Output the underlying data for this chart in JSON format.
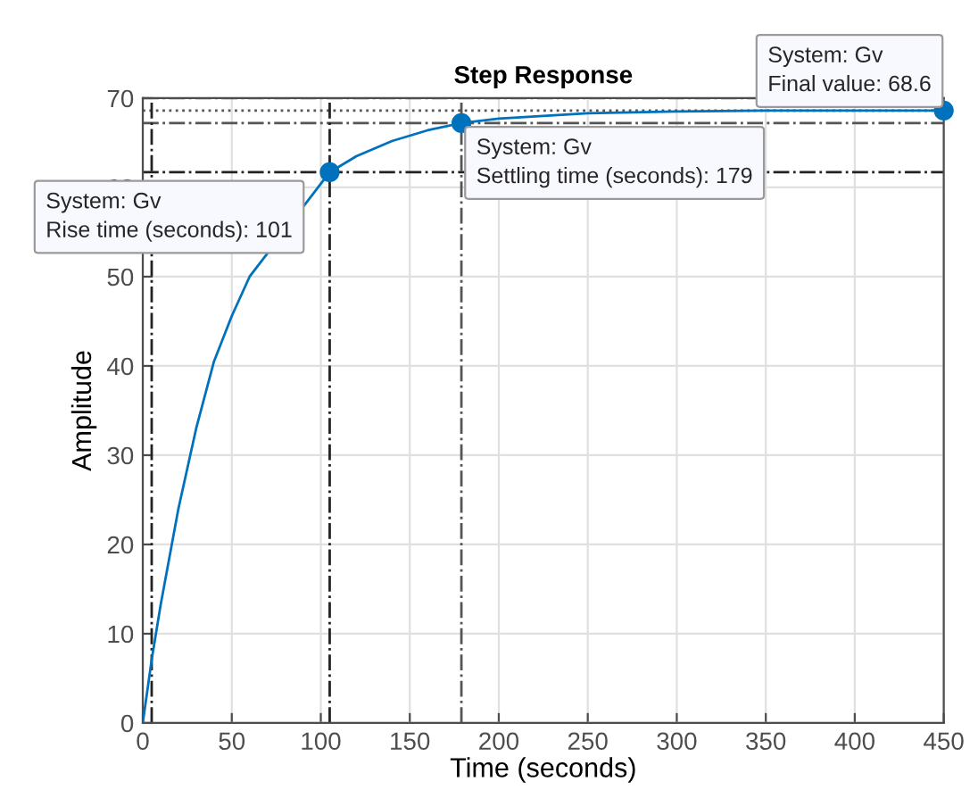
{
  "chart_data": {
    "type": "line",
    "title": "Step Response",
    "xlabel": "Time (seconds)",
    "ylabel": "Amplitude",
    "x": [
      0,
      5,
      10,
      20,
      30,
      40,
      50,
      60,
      105,
      120,
      140,
      160,
      179,
      200,
      250,
      300,
      350,
      400,
      450
    ],
    "series": [
      {
        "color": "#0072bd",
        "values": [
          0,
          7.1,
          13.2,
          24,
          33,
          40.5,
          45.6,
          50,
          61.7,
          63.5,
          65.2,
          66.4,
          67.2,
          67.7,
          68.3,
          68.5,
          68.6,
          68.6,
          68.6
        ]
      }
    ],
    "xlim": [
      0,
      450
    ],
    "xticks": [
      0,
      50,
      100,
      150,
      200,
      250,
      300,
      350,
      400,
      450
    ],
    "ylim": [
      0,
      70
    ],
    "yticks": [
      0,
      10,
      20,
      30,
      40,
      50,
      60,
      70
    ],
    "grid": true,
    "marker": "none",
    "line_style": "solid",
    "ref_lines": [
      {
        "axis": "y",
        "value": 68.6,
        "line_style": "dotted",
        "color": "#555555"
      },
      {
        "axis": "y",
        "value": 70,
        "line_style": "dashdot",
        "color": "#555555"
      },
      {
        "axis": "y",
        "value": 67.2,
        "line_style": "dashdot",
        "color": "#555555"
      },
      {
        "axis": "y",
        "value": 61.7,
        "line_style": "dashdot",
        "color": "#222222"
      },
      {
        "axis": "x",
        "value": 5,
        "line_style": "dashdot",
        "color": "#222222"
      },
      {
        "axis": "x",
        "value": 105,
        "line_style": "dashdot",
        "color": "#222222"
      },
      {
        "axis": "x",
        "value": 179,
        "line_style": "dashdot",
        "color": "#555555"
      }
    ],
    "annotations": [
      {
        "text": "System: Gv\nRise time (seconds): 101",
        "x": 105,
        "y": 61.7
      },
      {
        "text": "System: Gv\nSettling time (seconds): 179",
        "x": 179,
        "y": 67.2
      },
      {
        "text": "System: Gv\nFinal value: 68.6",
        "x": 450,
        "y": 68.6
      }
    ]
  }
}
